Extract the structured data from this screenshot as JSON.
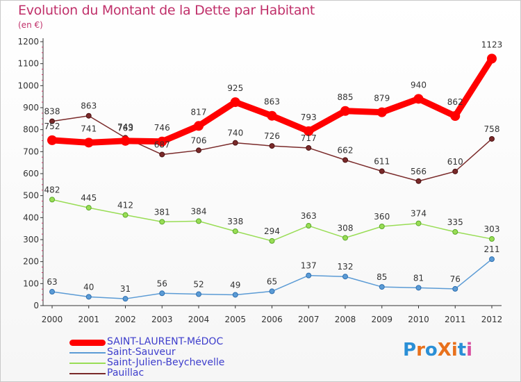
{
  "chart_data": {
    "type": "line",
    "title": "Evolution du Montant de la Dette par Habitant",
    "unit_label": "(en €)",
    "categories": [
      "2000",
      "2001",
      "2002",
      "2003",
      "2004",
      "2005",
      "2006",
      "2007",
      "2008",
      "2009",
      "2010",
      "2011",
      "2012"
    ],
    "ylim": [
      0,
      1200
    ],
    "yticks": [
      0,
      100,
      200,
      300,
      400,
      500,
      600,
      700,
      800,
      900,
      1000,
      1100,
      1200
    ],
    "grid": false,
    "legend_position": "bottom-left",
    "series": [
      {
        "name": "SAINT-LAURENT-MéDOC",
        "color": "#ff0000",
        "values": [
          752,
          741,
          749,
          746,
          817,
          925,
          863,
          793,
          885,
          879,
          940,
          862,
          1123
        ]
      },
      {
        "name": "Saint-Sauveur",
        "color": "#5b9bd5",
        "values": [
          63,
          40,
          31,
          56,
          52,
          49,
          65,
          137,
          132,
          85,
          81,
          76,
          211
        ]
      },
      {
        "name": "Saint-Julien-Beychevelle",
        "color": "#99dd55",
        "values": [
          482,
          445,
          412,
          381,
          384,
          338,
          294,
          363,
          308,
          360,
          374,
          335,
          303
        ]
      },
      {
        "name": "Pauillac",
        "color": "#7a2a2a",
        "values": [
          838,
          863,
          763,
          687,
          706,
          740,
          726,
          717,
          662,
          611,
          566,
          610,
          758
        ]
      }
    ]
  },
  "logo_text": "ProXiti",
  "legend": [
    {
      "label": "SAINT-LAURENT-MéDOC",
      "color": "#ff0000",
      "thickness": 9
    },
    {
      "label": "Saint-Sauveur",
      "color": "#5b9bd5",
      "thickness": 2
    },
    {
      "label": "Saint-Julien-Beychevelle",
      "color": "#99dd55",
      "thickness": 2
    },
    {
      "label": "Pauillac",
      "color": "#7a2a2a",
      "thickness": 2
    }
  ]
}
